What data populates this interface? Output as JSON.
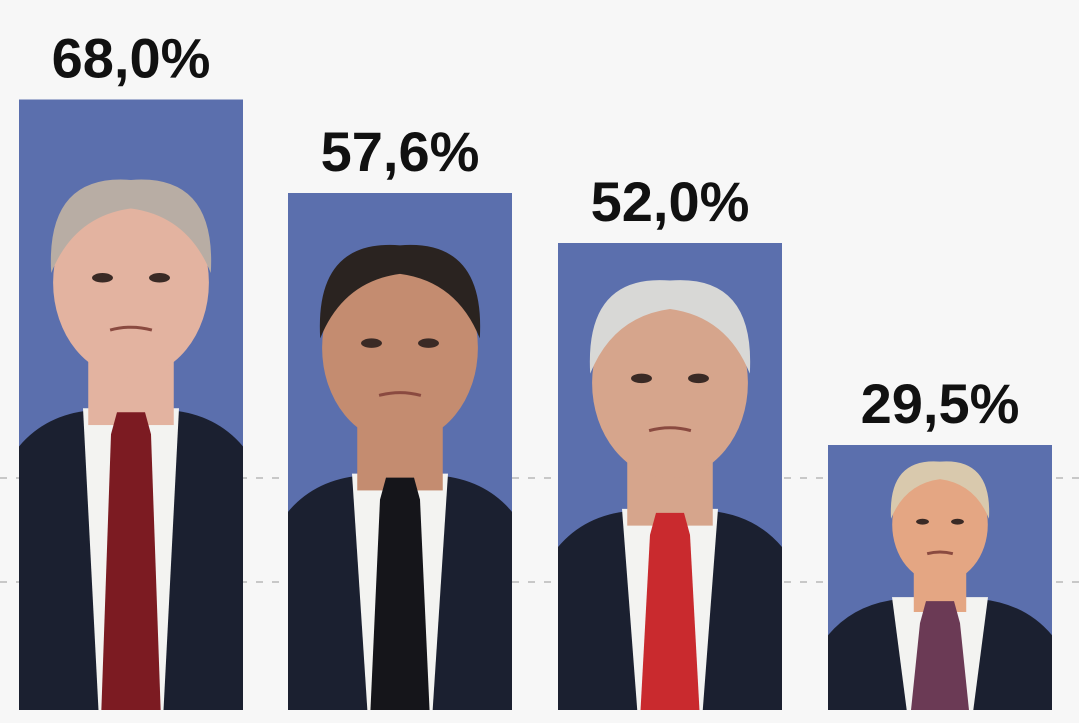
{
  "chart_data": {
    "type": "bar",
    "categories": [
      "",
      "",
      "",
      ""
    ],
    "values": [
      68.0,
      57.6,
      52.0,
      29.5
    ],
    "value_labels": [
      "68,0%",
      "57,6%",
      "52,0%",
      "29,5%"
    ],
    "unit": "%",
    "title": "",
    "xlabel": "",
    "ylabel": "",
    "grid": true,
    "legend": "none"
  },
  "colors": {
    "bar": "#5b6fad",
    "background": "#f7f7f7",
    "suit_dark": "#1b2030",
    "shirt": "#f3f3f1",
    "label_text": "#111111"
  },
  "bar_content": [
    {
      "icon": "portrait-icon",
      "tie_color": "#7c1b22",
      "skin": "#e3b3a0",
      "hair": "#b8ada4"
    },
    {
      "icon": "portrait-icon",
      "tie_color": "#15151a",
      "skin": "#c48c70",
      "hair": "#2a2320"
    },
    {
      "icon": "portrait-icon",
      "tie_color": "#c92a2e",
      "skin": "#d6a58c",
      "hair": "#d8d8d6"
    },
    {
      "icon": "portrait-icon",
      "tie_color": "#6b3a55",
      "skin": "#e4a683",
      "hair": "#d9c9ad"
    }
  ]
}
